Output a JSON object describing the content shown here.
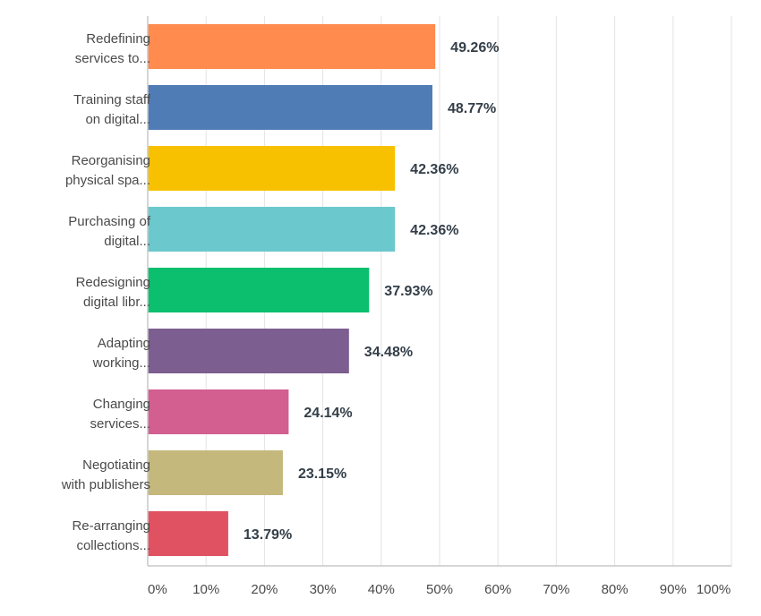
{
  "chart_data": {
    "type": "bar",
    "orientation": "horizontal",
    "categories": [
      [
        "Redefining",
        "services to..."
      ],
      [
        "Training staff",
        "on digital..."
      ],
      [
        "Reorganising",
        "physical spa..."
      ],
      [
        "Purchasing of",
        "digital..."
      ],
      [
        "Redesigning",
        "digital libr..."
      ],
      [
        "Adapting",
        "working..."
      ],
      [
        "Changing",
        "services..."
      ],
      [
        "Negotiating",
        "with publishers"
      ],
      [
        "Re-arranging",
        "collections..."
      ]
    ],
    "values": [
      49.26,
      48.77,
      42.36,
      42.36,
      37.93,
      34.48,
      24.14,
      23.15,
      13.79
    ],
    "value_labels": [
      "49.26%",
      "48.77%",
      "42.36%",
      "42.36%",
      "37.93%",
      "34.48%",
      "24.14%",
      "23.15%",
      "13.79%"
    ],
    "colors": [
      "#ff8b4f",
      "#507cb6",
      "#f7c100",
      "#6bc8cd",
      "#0bbf6e",
      "#7d5e90",
      "#d25f90",
      "#c5b87d",
      "#e05161"
    ],
    "xlim": [
      0,
      100
    ],
    "xticks": [
      0,
      10,
      20,
      30,
      40,
      50,
      60,
      70,
      80,
      90,
      100
    ],
    "xtick_labels": [
      "0%",
      "10%",
      "20%",
      "30%",
      "40%",
      "50%",
      "60%",
      "70%",
      "80%",
      "90%",
      "100%"
    ],
    "grid": true,
    "title": "",
    "xlabel": "",
    "ylabel": ""
  }
}
